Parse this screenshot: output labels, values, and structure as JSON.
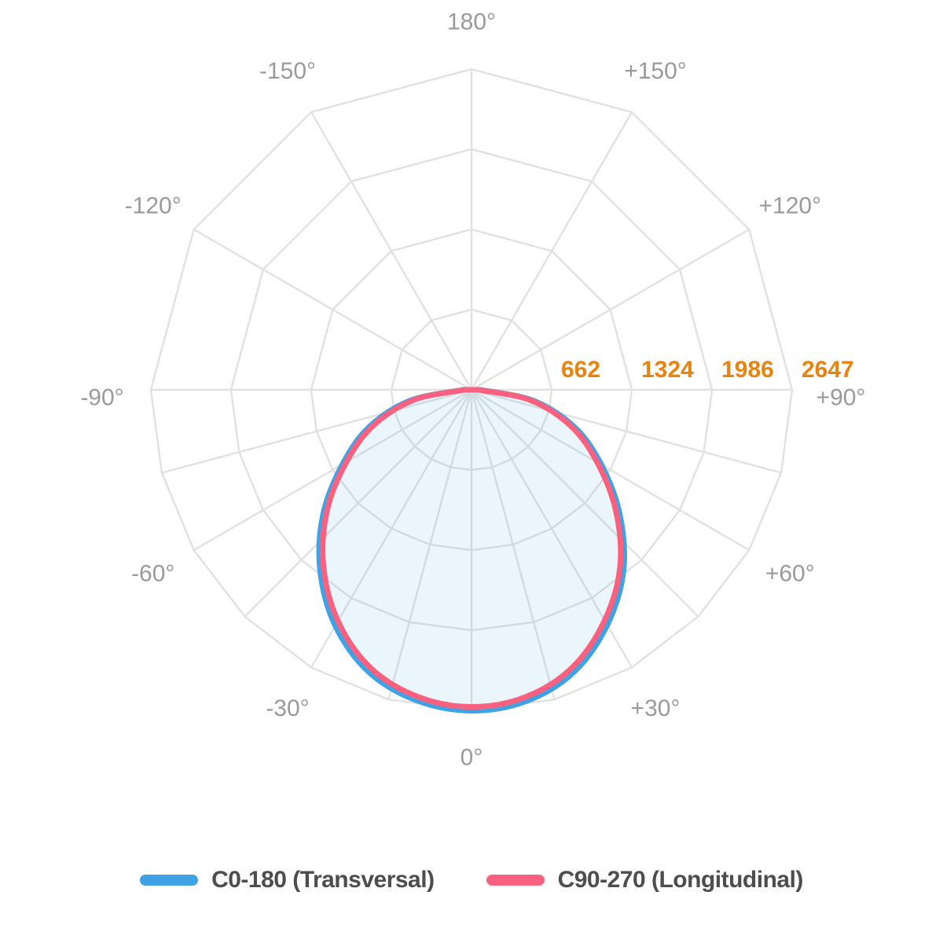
{
  "chart_data": {
    "type": "polar-photometric",
    "units": "cd",
    "title": "",
    "center": {
      "x": 600,
      "y": 496
    },
    "outer_radius_px": 408,
    "radial_axis": {
      "max": 2647,
      "ticks": [
        662,
        1324,
        1986,
        2647
      ],
      "tick_color": "#E8830D"
    },
    "grid": {
      "polygonal": true,
      "lower_step_deg": 15,
      "upper_step_deg": 30,
      "color": "#E1E1E1",
      "vertex_angles": [
        -90,
        -75,
        -60,
        -45,
        -30,
        -15,
        0,
        15,
        30,
        45,
        60,
        75,
        90,
        120,
        150,
        180,
        -150,
        -120
      ]
    },
    "angle_labels": [
      {
        "angle": 0,
        "label": "0°"
      },
      {
        "angle": 30,
        "label": "+30°"
      },
      {
        "angle": 60,
        "label": "+60°"
      },
      {
        "angle": 90,
        "label": "+90°"
      },
      {
        "angle": 120,
        "label": "+120°"
      },
      {
        "angle": 150,
        "label": "+150°"
      },
      {
        "angle": 180,
        "label": "180°"
      },
      {
        "angle": -150,
        "label": "-150°"
      },
      {
        "angle": -120,
        "label": "-120°"
      },
      {
        "angle": -90,
        "label": "-90°"
      },
      {
        "angle": -60,
        "label": "-60°"
      },
      {
        "angle": -30,
        "label": "-30°"
      }
    ],
    "series": [
      {
        "name": "C0-180 (Transversal)",
        "color": "#3EA2E5",
        "fill": "rgba(62,162,229,0.10)",
        "angles": [
          -90,
          -80,
          -70,
          -60,
          -50,
          -40,
          -30,
          -20,
          -10,
          0,
          10,
          20,
          30,
          40,
          50,
          60,
          70,
          80,
          90
        ],
        "values": [
          70,
          515,
          900,
          1230,
          1600,
          1945,
          2250,
          2480,
          2605,
          2650,
          2610,
          2478,
          2242,
          1952,
          1598,
          1238,
          908,
          520,
          72
        ]
      },
      {
        "name": "C90-270 (Longitudinal)",
        "color": "#FA617F",
        "fill": "none",
        "angles": [
          -90,
          -80,
          -70,
          -60,
          -50,
          -40,
          -30,
          -20,
          -10,
          0,
          10,
          20,
          30,
          40,
          50,
          60,
          70,
          80,
          90
        ],
        "values": [
          52,
          482,
          862,
          1192,
          1558,
          1902,
          2205,
          2442,
          2572,
          2618,
          2575,
          2438,
          2198,
          1908,
          1556,
          1198,
          872,
          492,
          55
        ]
      }
    ],
    "legend": [
      {
        "label": "C0-180 (Transversal)",
        "color": "#3EA2E5"
      },
      {
        "label": "C90-270 (Longitudinal)",
        "color": "#FA617F"
      }
    ],
    "legend_position": "bottom",
    "label_color": "#9A9A9A"
  }
}
